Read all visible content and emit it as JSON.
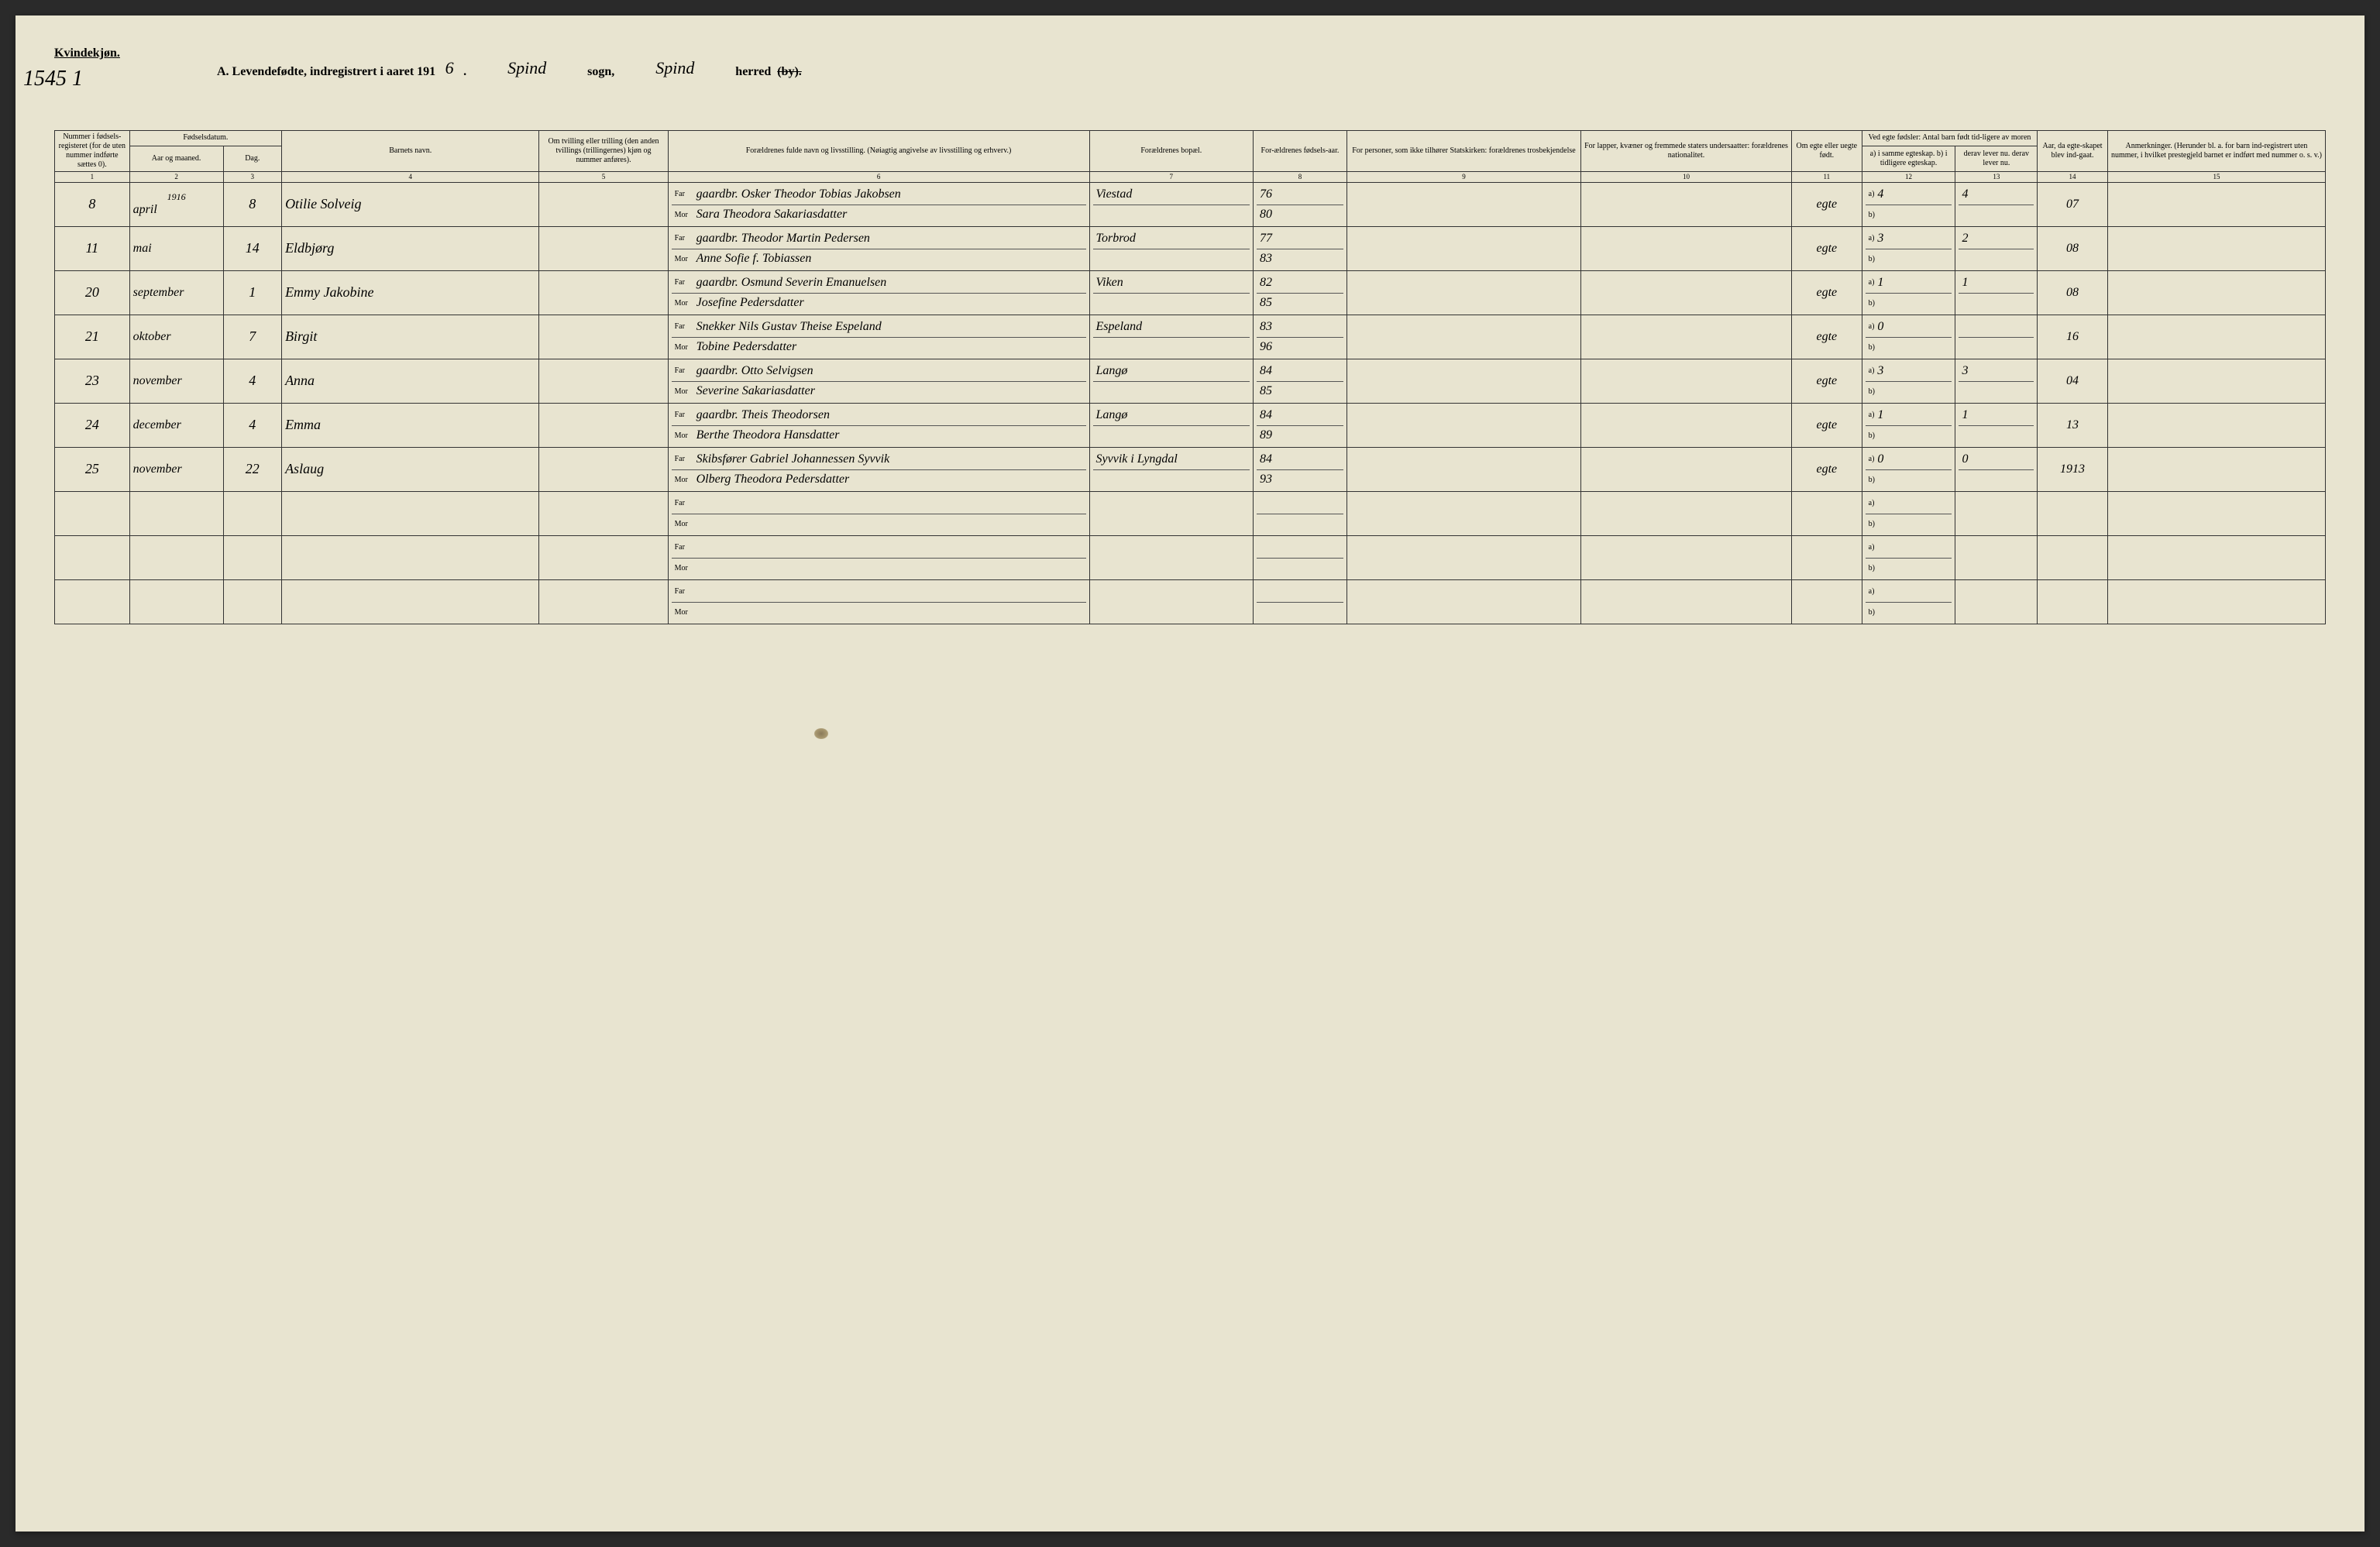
{
  "header": {
    "gender_label": "Kvindekjøn.",
    "page_ref": "1545 1",
    "title_prefix": "A.  Levendefødte, indregistrert i aaret 191",
    "year_suffix": "6",
    "sogn_label": "sogn,",
    "sogn_value": "Spind",
    "herred_label": "herred",
    "herred_value": "Spind",
    "by_struck": "(by)."
  },
  "columns": {
    "c1": "Nummer i fødsels-registeret (for de uten nummer indførte sættes 0).",
    "c2_group": "Fødselsdatum.",
    "c2": "Aar og maaned.",
    "c3": "Dag.",
    "c4": "Barnets navn.",
    "c5": "Om tvilling eller trilling (den anden tvillings (trillingernes) kjøn og nummer anføres).",
    "c6": "Forældrenes fulde navn og livsstilling. (Nøiagtig angivelse av livsstilling og erhverv.)",
    "c7": "Forældrenes bopæl.",
    "c8": "For-ældrenes fødsels-aar.",
    "c9": "For personer, som ikke tilhører Statskirken: forældrenes trosbekjendelse",
    "c10": "For lapper, kvæner og fremmede staters undersaatter: forældrenes nationalitet.",
    "c11": "Om egte eller uegte født.",
    "c12_group": "Ved egte fødsler: Antal barn født tid-ligere av moren",
    "c12": "a) i samme egteskap. b) i tidligere egteskap.",
    "c13": "derav lever nu. derav lever nu.",
    "c14": "Aar, da egte-skapet blev ind-gaat.",
    "c15": "Anmerkninger. (Herunder bl. a. for barn ind-registrert uten nummer, i hvilket prestegjeld barnet er indført med nummer o. s. v.)",
    "far": "Far",
    "mor": "Mor"
  },
  "colnums": [
    "1",
    "2",
    "3",
    "4",
    "5",
    "6",
    "7",
    "8",
    "9",
    "10",
    "11",
    "12",
    "13",
    "14",
    "15"
  ],
  "first_year": "1916",
  "rows": [
    {
      "num": "8",
      "month": "april",
      "day": "8",
      "name": "Otilie Solveig",
      "far": "gaardbr. Osker Theodor Tobias Jakobsen",
      "mor": "Sara Theodora Sakariasdatter",
      "bopel": "Viestad",
      "far_aar": "76",
      "mor_aar": "80",
      "egte": "egte",
      "a12": "4",
      "a13": "4",
      "aar_gift": "07"
    },
    {
      "num": "11",
      "month": "mai",
      "day": "14",
      "name": "Eldbjørg",
      "far": "gaardbr. Theodor Martin Pedersen",
      "mor": "Anne Sofie f. Tobiassen",
      "bopel": "Torbrod",
      "far_aar": "77",
      "mor_aar": "83",
      "egte": "egte",
      "a12": "3",
      "a13": "2",
      "aar_gift": "08"
    },
    {
      "num": "20",
      "month": "september",
      "day": "1",
      "name": "Emmy Jakobine",
      "far": "gaardbr. Osmund Severin Emanuelsen",
      "mor": "Josefine Pedersdatter",
      "bopel": "Viken",
      "far_aar": "82",
      "mor_aar": "85",
      "egte": "egte",
      "a12": "1",
      "a13": "1",
      "aar_gift": "08"
    },
    {
      "num": "21",
      "month": "oktober",
      "day": "7",
      "name": "Birgit",
      "far": "Snekker Nils Gustav Theise Espeland",
      "mor": "Tobine Pedersdatter",
      "bopel": "Espeland",
      "far_aar": "83",
      "mor_aar": "96",
      "egte": "egte",
      "a12": "0",
      "a13": "",
      "aar_gift": "16"
    },
    {
      "num": "23",
      "month": "november",
      "day": "4",
      "name": "Anna",
      "far": "gaardbr. Otto Selvigsen",
      "mor": "Severine Sakariasdatter",
      "bopel": "Langø",
      "far_aar": "84",
      "mor_aar": "85",
      "egte": "egte",
      "a12": "3",
      "a13": "3",
      "aar_gift": "04"
    },
    {
      "num": "24",
      "month": "december",
      "day": "4",
      "name": "Emma",
      "far": "gaardbr. Theis Theodorsen",
      "mor": "Berthe Theodora Hansdatter",
      "bopel": "Langø",
      "far_aar": "84",
      "mor_aar": "89",
      "egte": "egte",
      "a12": "1",
      "a13": "1",
      "aar_gift": "13"
    },
    {
      "num": "25",
      "month": "november",
      "day": "22",
      "name": "Aslaug",
      "far": "Skibsfører Gabriel Johannessen Syvvik",
      "mor": "Olberg Theodora Pedersdatter",
      "bopel": "Syvvik i Lyngdal",
      "far_aar": "84",
      "mor_aar": "93",
      "egte": "egte",
      "a12": "0",
      "a13": "0",
      "aar_gift": "1913"
    }
  ],
  "empty_rows": 3,
  "colors": {
    "paper": "#e8e4d0",
    "ink": "#333333",
    "script": "#3a3a3a"
  }
}
